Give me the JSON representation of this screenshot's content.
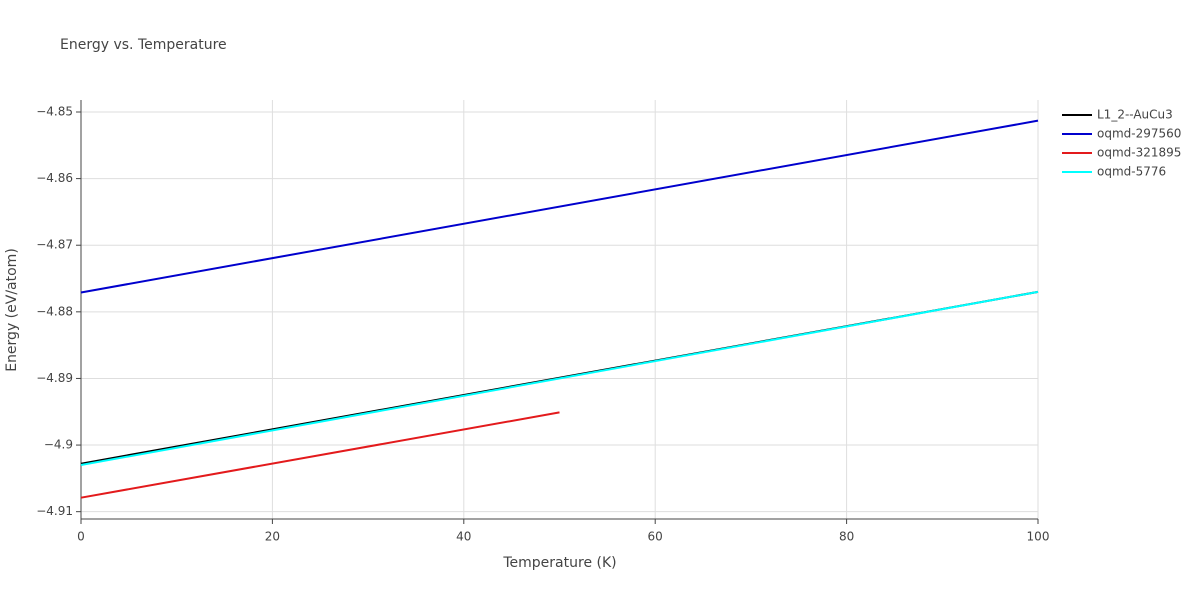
{
  "chart_data": {
    "type": "line",
    "title": "Energy vs. Temperature",
    "x_label": "Temperature (K)",
    "y_label": "Energy (eV/atom)",
    "xlim": [
      0,
      100
    ],
    "xticks": [
      0,
      20,
      40,
      60,
      80,
      100
    ],
    "ylim": [
      -4.9111,
      -4.8482
    ],
    "yticks": [
      {
        "value": -4.91,
        "label": "−4.91"
      },
      {
        "value": -4.9,
        "label": "−4.9"
      },
      {
        "value": -4.89,
        "label": "−4.89"
      },
      {
        "value": -4.88,
        "label": "−4.88"
      },
      {
        "value": -4.87,
        "label": "−4.87"
      },
      {
        "value": -4.86,
        "label": "−4.86"
      },
      {
        "value": -4.85,
        "label": "−4.85"
      }
    ],
    "grid": true,
    "legend": "top-right",
    "series": [
      {
        "name": "L1_2--AuCu3",
        "color": "#000000",
        "x": [
          0,
          100
        ],
        "values": [
          -4.9028,
          -4.877
        ]
      },
      {
        "name": "oqmd-297560",
        "color": "#0000cd",
        "x": [
          0,
          100
        ],
        "values": [
          -4.8771,
          -4.8513
        ]
      },
      {
        "name": "oqmd-321895",
        "color": "#e31a1c",
        "x": [
          0,
          50
        ],
        "values": [
          -4.9079,
          -4.8951
        ]
      },
      {
        "name": "oqmd-5776",
        "color": "#00ffff",
        "x": [
          0,
          100
        ],
        "values": [
          -4.903,
          -4.877
        ]
      }
    ]
  }
}
